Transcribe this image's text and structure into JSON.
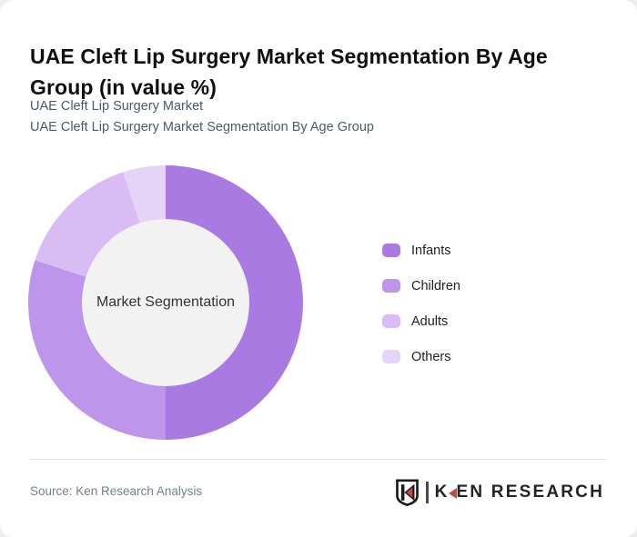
{
  "page": {
    "title": "UAE Cleft Lip Surgery Market Segmentation By Age Group (in value %)",
    "subtitle_line1": "UAE Cleft Lip Surgery Market",
    "subtitle_line2": "UAE Cleft Lip Surgery Market Segmentation By Age Group"
  },
  "chart_data": {
    "type": "pie",
    "variant": "donut",
    "title": "UAE Cleft Lip Surgery Market Segmentation By Age Group (in value %)",
    "unit": "value %",
    "center_label": "Market Segmentation",
    "legend_position": "right",
    "start_angle_deg": 0,
    "direction": "clockwise",
    "inner_circle_color": "#f2f2f2",
    "segments": [
      {
        "label": "Infants",
        "value": 50,
        "color": "#a87ae2"
      },
      {
        "label": "Children",
        "value": 30,
        "color": "#bd95ea"
      },
      {
        "label": "Adults",
        "value": 15,
        "color": "#d8bcf3"
      },
      {
        "label": "Others",
        "value": 5,
        "color": "#e5d4f8"
      }
    ]
  },
  "footer": {
    "source": "Source: Ken Research Analysis",
    "logo": {
      "brand": "KEN RESEARCH",
      "shield_letter": "K",
      "accent_color": "#c64848",
      "ink_color": "#1b1b1b"
    }
  }
}
